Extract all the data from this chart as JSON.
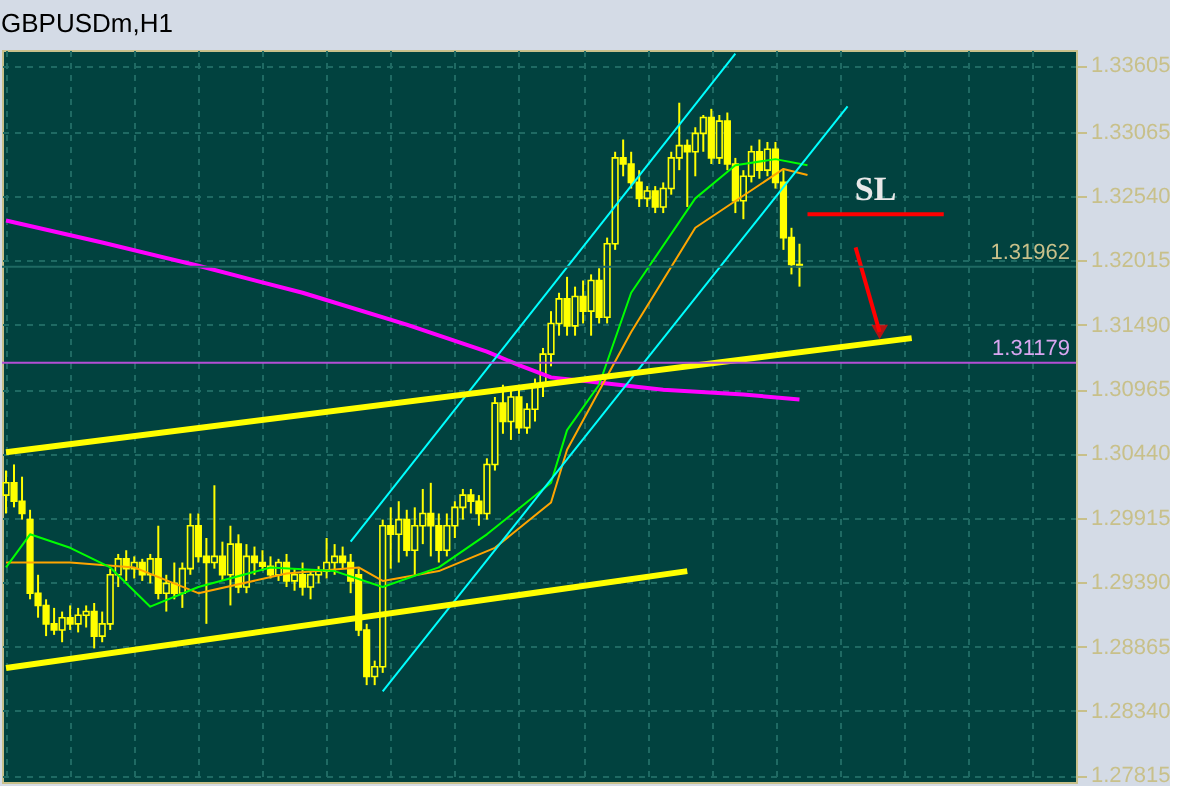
{
  "chart_data": {
    "type": "candlestick",
    "title": "GBPUSDm,H1",
    "color": "#ffff00",
    "categories": [
      null,
      null,
      null,
      null,
      null,
      null,
      null,
      null,
      null,
      null,
      null,
      null,
      null,
      null,
      null,
      null,
      null,
      null,
      null,
      null,
      null,
      null,
      null,
      null,
      null,
      null,
      null,
      null,
      null,
      null,
      null,
      null,
      null,
      null,
      null,
      null,
      null,
      null,
      null,
      null,
      null,
      null,
      null,
      null,
      null,
      null,
      null,
      null,
      null,
      null,
      null,
      null,
      null,
      null,
      null,
      null,
      null,
      null,
      null,
      null,
      null,
      null,
      null,
      null,
      null,
      null,
      null,
      null,
      null,
      null,
      null,
      null,
      null,
      null,
      null,
      null,
      null,
      null,
      null,
      null,
      null,
      null,
      null,
      null,
      null,
      null,
      null,
      null,
      null,
      null,
      null,
      null,
      null,
      null,
      null,
      null,
      null,
      null,
      null,
      null,
      null,
      null,
      null,
      null,
      null,
      null,
      null,
      null,
      null,
      null,
      null,
      null,
      null,
      null,
      null,
      null,
      null,
      null,
      null,
      null,
      null,
      null,
      null,
      null,
      null,
      null,
      null,
      null,
      null,
      null,
      null,
      null,
      null,
      null
    ],
    "ohlc": [
      [
        1.301,
        1.303,
        1.2995,
        1.302
      ],
      [
        1.302,
        1.3035,
        1.3,
        1.3005
      ],
      [
        1.3005,
        1.3025,
        1.299,
        1.2995
      ],
      [
        1.299,
        1.2998,
        1.2925,
        1.293
      ],
      [
        1.293,
        1.2945,
        1.291,
        1.292
      ],
      [
        1.292,
        1.2925,
        1.2895,
        1.2905
      ],
      [
        1.2905,
        1.2918,
        1.2896,
        1.29
      ],
      [
        1.29,
        1.2915,
        1.289,
        1.291
      ],
      [
        1.291,
        1.292,
        1.29,
        1.2905
      ],
      [
        1.2905,
        1.2918,
        1.2898,
        1.2912
      ],
      [
        1.2912,
        1.292,
        1.2902,
        1.2915
      ],
      [
        1.2915,
        1.2922,
        1.2885,
        1.2895
      ],
      [
        1.2895,
        1.2915,
        1.289,
        1.2905
      ],
      [
        1.2905,
        1.295,
        1.29,
        1.2945
      ],
      [
        1.2945,
        1.2962,
        1.2935,
        1.2958
      ],
      [
        1.2958,
        1.2965,
        1.294,
        1.295
      ],
      [
        1.295,
        1.296,
        1.2942,
        1.2955
      ],
      [
        1.2955,
        1.2958,
        1.294,
        1.2945
      ],
      [
        1.2945,
        1.2962,
        1.2938,
        1.2958
      ],
      [
        1.2958,
        1.2985,
        1.2925,
        1.293
      ],
      [
        1.293,
        1.2945,
        1.2915,
        1.2938
      ],
      [
        1.2938,
        1.2955,
        1.2925,
        1.293
      ],
      [
        1.293,
        1.2955,
        1.2918,
        1.295
      ],
      [
        1.295,
        1.2995,
        1.2945,
        1.2985
      ],
      [
        1.2985,
        1.2995,
        1.2955,
        1.296
      ],
      [
        1.296,
        1.2975,
        1.2905,
        1.2955
      ],
      [
        1.2955,
        1.3018,
        1.295,
        1.296
      ],
      [
        1.296,
        1.2972,
        1.294,
        1.2945
      ],
      [
        1.2945,
        1.2985,
        1.292,
        1.297
      ],
      [
        1.297,
        1.2978,
        1.293,
        1.2935
      ],
      [
        1.2935,
        1.297,
        1.293,
        1.296
      ],
      [
        1.296,
        1.2968,
        1.2945,
        1.2955
      ],
      [
        1.2955,
        1.2965,
        1.2948,
        1.2952
      ],
      [
        1.2952,
        1.296,
        1.2942,
        1.2945
      ],
      [
        1.2945,
        1.2958,
        1.294,
        1.2955
      ],
      [
        1.2955,
        1.2962,
        1.2935,
        1.294
      ],
      [
        1.294,
        1.295,
        1.2932,
        1.2945
      ],
      [
        1.2945,
        1.2955,
        1.2928,
        1.2935
      ],
      [
        1.2935,
        1.2948,
        1.2925,
        1.2945
      ],
      [
        1.2945,
        1.2952,
        1.2938,
        1.2948
      ],
      [
        1.2948,
        1.2975,
        1.2942,
        1.2955
      ],
      [
        1.2955,
        1.297,
        1.2945,
        1.296
      ],
      [
        1.296,
        1.2968,
        1.295,
        1.2955
      ],
      [
        1.2955,
        1.2962,
        1.293,
        1.294
      ],
      [
        1.2945,
        1.295,
        1.2895,
        1.29
      ],
      [
        1.29,
        1.2905,
        1.2855,
        1.2862
      ],
      [
        1.2862,
        1.2875,
        1.2855,
        1.287
      ],
      [
        1.287,
        1.299,
        1.2865,
        1.2985
      ],
      [
        1.2985,
        1.3,
        1.295,
        1.2978
      ],
      [
        1.2978,
        1.3005,
        1.2955,
        1.299
      ],
      [
        1.299,
        1.2998,
        1.296,
        1.2965
      ],
      [
        1.2965,
        1.3,
        1.2945,
        1.2985
      ],
      [
        1.2985,
        1.3015,
        1.297,
        1.2995
      ],
      [
        1.2995,
        1.302,
        1.296,
        1.2985
      ],
      [
        1.2985,
        1.2995,
        1.2955,
        1.2965
      ],
      [
        1.2965,
        1.2995,
        1.296,
        1.2985
      ],
      [
        1.2985,
        1.3005,
        1.2975,
        1.3
      ],
      [
        1.3,
        1.3015,
        1.299,
        1.301
      ],
      [
        1.301,
        1.3015,
        1.2995,
        1.3005
      ],
      [
        1.3005,
        1.301,
        1.2985,
        1.2995
      ],
      [
        1.2995,
        1.304,
        1.299,
        1.3035
      ],
      [
        1.3035,
        1.309,
        1.303,
        1.3085
      ],
      [
        1.3085,
        1.31,
        1.306,
        1.307
      ],
      [
        1.307,
        1.3095,
        1.3055,
        1.309
      ],
      [
        1.309,
        1.31,
        1.306,
        1.3065
      ],
      [
        1.3065,
        1.3085,
        1.306,
        1.308
      ],
      [
        1.308,
        1.3105,
        1.307,
        1.31
      ],
      [
        1.31,
        1.313,
        1.309,
        1.3125
      ],
      [
        1.3125,
        1.316,
        1.3115,
        1.315
      ],
      [
        1.315,
        1.3175,
        1.314,
        1.317
      ],
      [
        1.317,
        1.3188,
        1.314,
        1.3148
      ],
      [
        1.3148,
        1.318,
        1.314,
        1.3172
      ],
      [
        1.3172,
        1.3185,
        1.315,
        1.316
      ],
      [
        1.316,
        1.319,
        1.314,
        1.3185
      ],
      [
        1.3185,
        1.3195,
        1.315,
        1.3155
      ],
      [
        1.3155,
        1.322,
        1.315,
        1.3215
      ],
      [
        1.3215,
        1.329,
        1.321,
        1.3285
      ],
      [
        1.3285,
        1.33,
        1.327,
        1.328
      ],
      [
        1.328,
        1.329,
        1.326,
        1.3265
      ],
      [
        1.3265,
        1.3275,
        1.3245,
        1.3252
      ],
      [
        1.3252,
        1.3262,
        1.3245,
        1.3258
      ],
      [
        1.3258,
        1.3262,
        1.324,
        1.3245
      ],
      [
        1.3245,
        1.3265,
        1.324,
        1.326
      ],
      [
        1.326,
        1.329,
        1.3255,
        1.3285
      ],
      [
        1.3285,
        1.333,
        1.3275,
        1.3295
      ],
      [
        1.3295,
        1.33,
        1.3245,
        1.329
      ],
      [
        1.329,
        1.331,
        1.327,
        1.3305
      ],
      [
        1.3305,
        1.332,
        1.329,
        1.3318
      ],
      [
        1.3318,
        1.3325,
        1.328,
        1.3285
      ],
      [
        1.3285,
        1.332,
        1.328,
        1.3315
      ],
      [
        1.3315,
        1.3322,
        1.3275,
        1.328
      ],
      [
        1.328,
        1.3285,
        1.324,
        1.325
      ],
      [
        1.325,
        1.3275,
        1.3235,
        1.327
      ],
      [
        1.327,
        1.3295,
        1.3265,
        1.329
      ],
      [
        1.329,
        1.33,
        1.3268,
        1.3275
      ],
      [
        1.3275,
        1.3298,
        1.327,
        1.3292
      ],
      [
        1.3292,
        1.3298,
        1.326,
        1.3265
      ],
      [
        1.3265,
        1.3275,
        1.321,
        1.322
      ],
      [
        1.322,
        1.3228,
        1.319,
        1.3198
      ],
      [
        1.3198,
        1.3215,
        1.318,
        1.31962
      ],
      null,
      null,
      null,
      null,
      null,
      null,
      null,
      null,
      null,
      null,
      null,
      null,
      null,
      null,
      null,
      null,
      null,
      null,
      null,
      null,
      null,
      null,
      null,
      null,
      null,
      null,
      null,
      null,
      null,
      null,
      null,
      null,
      null,
      null
    ],
    "series": [
      {
        "type": "line",
        "color": "#ff00ff",
        "values": [
          1.3234,
          null,
          null,
          null,
          null,
          null,
          null,
          null,
          null,
          null,
          null,
          null,
          1.3216,
          null,
          null,
          null,
          null,
          null,
          null,
          null,
          null,
          null,
          null,
          null,
          1.3197,
          null,
          null,
          null,
          null,
          null,
          null,
          null,
          null,
          null,
          null,
          null,
          null,
          1.3175,
          null,
          null,
          null,
          null,
          null,
          null,
          null,
          null,
          null,
          null,
          null,
          null,
          1.3149,
          null,
          null,
          null,
          null,
          null,
          null,
          null,
          null,
          null,
          1.3127,
          null,
          null,
          null,
          1.3116,
          null,
          null,
          null,
          1.3106,
          null,
          null,
          null,
          null,
          null,
          null,
          1.3101,
          null,
          null,
          null,
          null,
          null,
          null,
          1.3096,
          null,
          null,
          null,
          null,
          null,
          null,
          null,
          null,
          null,
          1.3092,
          null,
          null,
          null,
          null,
          null,
          null,
          1.3088,
          null,
          null,
          null,
          null,
          null,
          null,
          null,
          null,
          null,
          null,
          null,
          null,
          null,
          null,
          null,
          null,
          null,
          null,
          null,
          null,
          null,
          null,
          null,
          null,
          null,
          null,
          null,
          null,
          null,
          null,
          null,
          null,
          null,
          null
        ]
      },
      {
        "type": "line",
        "color": "#ffa500",
        "values": [
          1.2955,
          null,
          null,
          null,
          null,
          null,
          null,
          null,
          1.2955,
          null,
          null,
          null,
          null,
          null,
          null,
          null,
          1.2951,
          null,
          null,
          null,
          null,
          null,
          null,
          null,
          1.293,
          null,
          null,
          null,
          null,
          null,
          null,
          null,
          null,
          null,
          null,
          1.2946,
          null,
          null,
          null,
          null,
          null,
          null,
          null,
          null,
          1.2951,
          null,
          null,
          1.294,
          null,
          null,
          null,
          null,
          null,
          null,
          1.2948,
          null,
          null,
          null,
          null,
          null,
          null,
          1.2967,
          null,
          null,
          null,
          null,
          null,
          null,
          1.3004,
          null,
          1.3047,
          null,
          null,
          null,
          null,
          null,
          null,
          null,
          1.3143,
          null,
          null,
          null,
          null,
          null,
          null,
          null,
          1.3228,
          null,
          null,
          null,
          null,
          null,
          null,
          null,
          null,
          null,
          null,
          1.3276,
          null,
          null,
          1.3271,
          null,
          null,
          null,
          null,
          null,
          null,
          null,
          null,
          null,
          null,
          null,
          null,
          null,
          null,
          null,
          null,
          null,
          null,
          null,
          null,
          null,
          null,
          null,
          null,
          null,
          null,
          null,
          null,
          null,
          null,
          null,
          null,
          null
        ]
      },
      {
        "type": "line",
        "color": "#00ff00",
        "values": [
          1.2951,
          null,
          null,
          1.2978,
          null,
          null,
          null,
          null,
          1.2967,
          null,
          null,
          null,
          null,
          1.2951,
          null,
          null,
          null,
          null,
          1.2919,
          null,
          null,
          null,
          null,
          null,
          1.2935,
          null,
          null,
          null,
          null,
          null,
          null,
          null,
          null,
          1.2951,
          null,
          null,
          null,
          null,
          null,
          null,
          null,
          1.2948,
          null,
          null,
          null,
          null,
          null,
          1.2935,
          null,
          null,
          null,
          null,
          null,
          null,
          1.2951,
          null,
          null,
          null,
          null,
          null,
          1.2978,
          null,
          null,
          null,
          null,
          null,
          null,
          null,
          1.302,
          null,
          1.3063,
          null,
          null,
          null,
          1.31,
          null,
          null,
          null,
          1.3175,
          null,
          null,
          null,
          null,
          null,
          null,
          null,
          1.3252,
          null,
          null,
          null,
          null,
          1.3279,
          null,
          null,
          null,
          null,
          1.3284,
          null,
          null,
          null,
          1.3279,
          null,
          null,
          null,
          null,
          null,
          null,
          null,
          null,
          null,
          null,
          null,
          null,
          null,
          null,
          null,
          null,
          null,
          null,
          null,
          null,
          null,
          null,
          null,
          null,
          null,
          null,
          null,
          null,
          null,
          null,
          null,
          null,
          null
        ]
      },
      {
        "type": "line",
        "color": "#00ffff",
        "values": [
          null,
          null,
          null,
          null,
          null,
          null,
          null,
          null,
          null,
          null,
          null,
          null,
          null,
          null,
          null,
          null,
          null,
          null,
          null,
          null,
          null,
          null,
          null,
          null,
          null,
          null,
          null,
          null,
          null,
          null,
          null,
          null,
          null,
          null,
          null,
          null,
          null,
          null,
          null,
          null,
          null,
          null,
          null,
          1.2972,
          null,
          null,
          null,
          null,
          null,
          null,
          null,
          null,
          null,
          null,
          null,
          null,
          null,
          null,
          null,
          null,
          null,
          null,
          null,
          null,
          null,
          null,
          null,
          null,
          null,
          null,
          null,
          null,
          null,
          null,
          null,
          null,
          null,
          null,
          null,
          null,
          null,
          null,
          null,
          null,
          null,
          null,
          null,
          null,
          null,
          null,
          null,
          1.337,
          null,
          null,
          null,
          null,
          null,
          null,
          null,
          null,
          null,
          null,
          null,
          null,
          null,
          null,
          null,
          null,
          null,
          null,
          null,
          null,
          null,
          null,
          null,
          null,
          null,
          null,
          null,
          null,
          null,
          null,
          null,
          null,
          null,
          null,
          null,
          null,
          null,
          null,
          null,
          null,
          null,
          null
        ]
      },
      {
        "type": "line",
        "color": "#00ffff",
        "values": [
          null,
          null,
          null,
          null,
          null,
          null,
          null,
          null,
          null,
          null,
          null,
          null,
          null,
          null,
          null,
          null,
          null,
          null,
          null,
          null,
          null,
          null,
          null,
          null,
          null,
          null,
          null,
          null,
          null,
          null,
          null,
          null,
          null,
          null,
          null,
          null,
          null,
          null,
          null,
          null,
          null,
          null,
          null,
          null,
          null,
          null,
          null,
          1.285,
          null,
          null,
          null,
          null,
          null,
          null,
          null,
          null,
          null,
          null,
          null,
          null,
          null,
          null,
          null,
          null,
          null,
          null,
          null,
          null,
          null,
          null,
          null,
          null,
          null,
          null,
          null,
          null,
          null,
          null,
          null,
          null,
          null,
          null,
          null,
          null,
          null,
          null,
          null,
          null,
          null,
          null,
          null,
          null,
          null,
          null,
          null,
          null,
          null,
          null,
          null,
          null,
          null,
          null,
          null,
          null,
          null,
          1.3327,
          null,
          null,
          null,
          null,
          null,
          null,
          null,
          null,
          null,
          null,
          null,
          null,
          null,
          null,
          null,
          null,
          null,
          null,
          null,
          null,
          null,
          null,
          null,
          null,
          null,
          null,
          null,
          null
        ]
      },
      {
        "type": "line",
        "color": "#ffff00",
        "values": [
          1.3045,
          null,
          null,
          null,
          null,
          null,
          null,
          null,
          null,
          null,
          null,
          null,
          null,
          null,
          null,
          null,
          null,
          null,
          null,
          null,
          null,
          null,
          null,
          null,
          null,
          null,
          null,
          null,
          null,
          null,
          null,
          null,
          null,
          null,
          null,
          null,
          null,
          null,
          null,
          null,
          null,
          null,
          null,
          null,
          null,
          null,
          null,
          null,
          null,
          null,
          null,
          null,
          null,
          null,
          null,
          null,
          null,
          null,
          null,
          null,
          null,
          null,
          null,
          null,
          null,
          null,
          null,
          null,
          null,
          null,
          null,
          null,
          null,
          null,
          null,
          null,
          null,
          null,
          null,
          null,
          null,
          null,
          null,
          null,
          null,
          null,
          null,
          null,
          null,
          null,
          null,
          null,
          null,
          null,
          null,
          null,
          null,
          null,
          null,
          null,
          null,
          null,
          null,
          null,
          null,
          null,
          null,
          null,
          null,
          null,
          null,
          null,
          null,
          1.3138,
          null,
          null,
          null,
          null,
          null,
          null,
          null,
          null,
          null,
          null,
          null,
          null,
          null,
          null,
          null,
          null,
          null,
          null,
          null,
          null
        ]
      },
      {
        "type": "line",
        "color": "#ffff00",
        "values": [
          1.2869,
          null,
          null,
          null,
          null,
          null,
          null,
          null,
          null,
          null,
          null,
          null,
          null,
          null,
          null,
          null,
          null,
          null,
          null,
          null,
          null,
          null,
          null,
          null,
          null,
          null,
          null,
          null,
          null,
          null,
          null,
          null,
          null,
          null,
          null,
          null,
          null,
          null,
          null,
          null,
          null,
          null,
          null,
          null,
          null,
          null,
          null,
          null,
          null,
          null,
          null,
          null,
          null,
          null,
          null,
          null,
          null,
          null,
          null,
          null,
          null,
          null,
          null,
          null,
          null,
          null,
          null,
          null,
          null,
          null,
          null,
          null,
          null,
          null,
          null,
          null,
          null,
          null,
          null,
          null,
          null,
          null,
          null,
          null,
          null,
          1.2948,
          null,
          null,
          null,
          null,
          null,
          null,
          null,
          null,
          null,
          null,
          null,
          null,
          null,
          null,
          null,
          null,
          null,
          null,
          null,
          null,
          null,
          null,
          null,
          null,
          null,
          null,
          null,
          null,
          null,
          null,
          null,
          null,
          null,
          null,
          null,
          null,
          null,
          null,
          null,
          null,
          null,
          null,
          null,
          null,
          null,
          null,
          null,
          null
        ]
      },
      {
        "type": "line",
        "name": "SL",
        "color": "#ff0000",
        "values": [
          null,
          null,
          null,
          null,
          null,
          null,
          null,
          null,
          null,
          null,
          null,
          null,
          null,
          null,
          null,
          null,
          null,
          null,
          null,
          null,
          null,
          null,
          null,
          null,
          null,
          null,
          null,
          null,
          null,
          null,
          null,
          null,
          null,
          null,
          null,
          null,
          null,
          null,
          null,
          null,
          null,
          null,
          null,
          null,
          null,
          null,
          null,
          null,
          null,
          null,
          null,
          null,
          null,
          null,
          null,
          null,
          null,
          null,
          null,
          null,
          null,
          null,
          null,
          null,
          null,
          null,
          null,
          null,
          null,
          null,
          null,
          null,
          null,
          null,
          null,
          null,
          null,
          null,
          null,
          null,
          null,
          null,
          null,
          null,
          null,
          null,
          null,
          null,
          null,
          null,
          null,
          null,
          null,
          null,
          null,
          null,
          null,
          null,
          null,
          null,
          1.3239,
          null,
          null,
          null,
          null,
          null,
          null,
          null,
          null,
          null,
          null,
          null,
          null,
          null,
          null,
          null,
          null,
          1.3239,
          null,
          null,
          null,
          null,
          null,
          null,
          null,
          null,
          null,
          null,
          null,
          null,
          null,
          null,
          null,
          null
        ]
      },
      {
        "type": "line",
        "color": "#ff0000",
        "marker": "triangle",
        "values": [
          null,
          null,
          null,
          null,
          null,
          null,
          null,
          null,
          null,
          null,
          null,
          null,
          null,
          null,
          null,
          null,
          null,
          null,
          null,
          null,
          null,
          null,
          null,
          null,
          null,
          null,
          null,
          null,
          null,
          null,
          null,
          null,
          null,
          null,
          null,
          null,
          null,
          null,
          null,
          null,
          null,
          null,
          null,
          null,
          null,
          null,
          null,
          null,
          null,
          null,
          null,
          null,
          null,
          null,
          null,
          null,
          null,
          null,
          null,
          null,
          null,
          null,
          null,
          null,
          null,
          null,
          null,
          null,
          null,
          null,
          null,
          null,
          null,
          null,
          null,
          null,
          null,
          null,
          null,
          null,
          null,
          null,
          null,
          null,
          null,
          null,
          null,
          null,
          null,
          null,
          null,
          null,
          null,
          null,
          null,
          null,
          null,
          null,
          null,
          null,
          null,
          null,
          null,
          null,
          null,
          null,
          1.3212,
          null,
          null,
          1.3143,
          null,
          null,
          null,
          null,
          null,
          null,
          null,
          null,
          null,
          null,
          null,
          null,
          null,
          null,
          null,
          null,
          null,
          null,
          null,
          null,
          null,
          null,
          null,
          null
        ]
      }
    ],
    "ref_lines": [
      {
        "axis": "y",
        "value": 1.31179,
        "label": "1.31179",
        "color": "#b44fd6"
      },
      {
        "axis": "y",
        "value": 1.31962,
        "label": "1.31962",
        "color": "#1f6a63"
      }
    ],
    "ylim": [
      1.2776,
      1.3373
    ],
    "yticks": [
      1.33605,
      1.33065,
      {
        "value": 1.3254,
        "label": "1.32540"
      },
      1.32015,
      {
        "value": 1.3149,
        "label": "1.31490"
      },
      1.30965,
      {
        "value": 1.3044,
        "label": "1.30440"
      },
      1.29915,
      {
        "value": 1.2939,
        "label": "1.29390"
      },
      1.28865,
      {
        "value": 1.2834,
        "label": "1.28340"
      },
      1.27815
    ],
    "grid": true,
    "tick_labels": "y"
  }
}
